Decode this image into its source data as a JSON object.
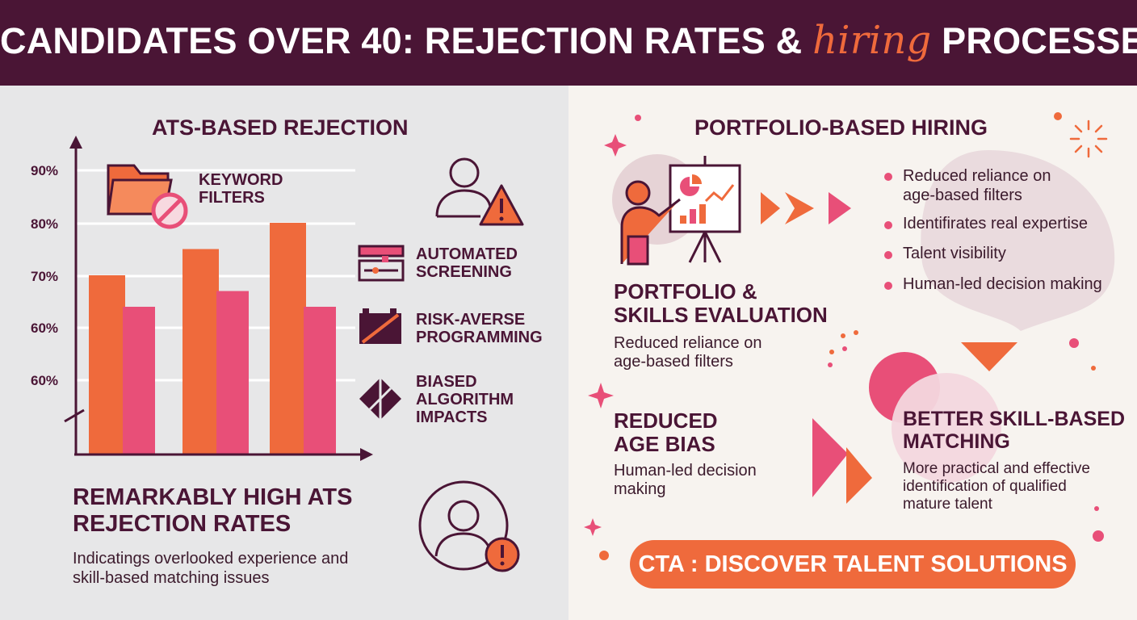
{
  "header": {
    "title_part1": "CANDIDATES OVER 40: REJECTION RATES & ",
    "title_accent": "hiring",
    "title_part2": " PROCESSES"
  },
  "left": {
    "heading": "ATS-BASED REJECTION",
    "chart_data": {
      "type": "bar",
      "y_tick_labels": [
        "90%",
        "80%",
        "70%",
        "60%",
        "60%"
      ],
      "y_axis_break": true,
      "categories": [
        "",
        "",
        ""
      ],
      "series": [
        {
          "values": [
            70,
            75,
            80
          ],
          "color": "#ef6a3c"
        },
        {
          "values": [
            64,
            67,
            64
          ],
          "color": "#e84f78"
        }
      ],
      "grid": true
    },
    "factors": [
      {
        "line1": "KEYWORD",
        "line2": "FILTERS",
        "icon": "folder-block-icon"
      },
      {
        "line1": "AUTOMATED",
        "line2": "SCREENING",
        "icon": "screening-icon"
      },
      {
        "line1": "RISK-AVERSE",
        "line2": "PROGRAMMING",
        "icon": "battery-slash-icon"
      },
      {
        "line1": "BIASED",
        "line2": "ALGORITHM",
        "line3": "IMPACTS",
        "icon": "algorithm-icon"
      }
    ],
    "result_heading_1": "REMARKABLY HIGH ATS",
    "result_heading_2": "REJECTION RATES",
    "result_text_1": "Indicatings overlooked experience and",
    "result_text_2": "skill-based matching issues"
  },
  "right": {
    "heading": "PORTFOLIO-BASED HIRING",
    "bullets": [
      {
        "line1": "Reduced reliance on",
        "line2": "age-based filters"
      },
      {
        "line1": "Identifirates real expertise"
      },
      {
        "line1": "Talent visibility"
      },
      {
        "line1": "Human-led decision making"
      }
    ],
    "portfolio_heading_1": "PORTFOLIO &",
    "portfolio_heading_2": "SKILLS EVALUATION",
    "portfolio_text_1": "Reduced reliance on",
    "portfolio_text_2": "age-based filters",
    "bias_heading_1": "REDUCED",
    "bias_heading_2": "AGE BIAS",
    "bias_text_1": "Human-led decision",
    "bias_text_2": "making",
    "matching_heading_1": "BETTER SKILL-BASED",
    "matching_heading_2": "MATCHING",
    "matching_text_1": "More  practical and effective",
    "matching_text_2": "identification of qualified",
    "matching_text_3": "mature talent",
    "cta_label": "CTA : DISCOVER TALENT SOLUTIONS"
  },
  "colors": {
    "maroon": "#4a1535",
    "orange": "#ef6a3c",
    "pink": "#e84f78",
    "left_bg": "#e7e7e8",
    "right_bg": "#f7f3ef"
  }
}
